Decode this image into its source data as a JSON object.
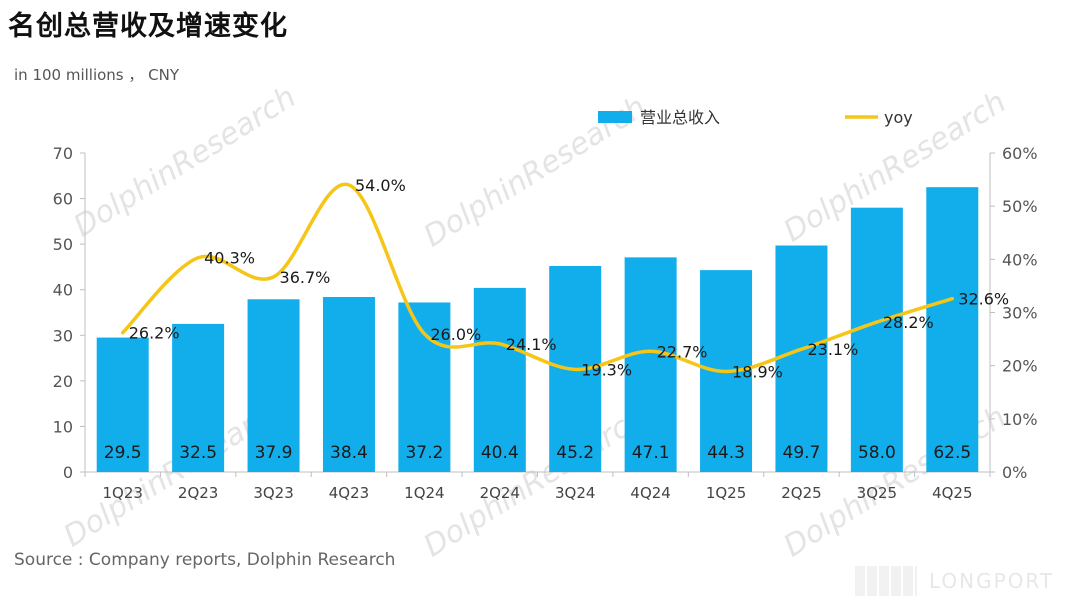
{
  "title": "名创总营收及增速变化",
  "unit_label": "in 100 millions ， CNY",
  "source": "Source : Company reports, Dolphin Research",
  "watermark": "DolphinResearch",
  "logo_text": "LONGPORT",
  "chart_data": {
    "type": "bar",
    "categories": [
      "1Q23",
      "2Q23",
      "3Q23",
      "4Q23",
      "1Q24",
      "2Q24",
      "3Q24",
      "4Q24",
      "1Q25",
      "2Q25",
      "3Q25",
      "4Q25"
    ],
    "series": [
      {
        "name": "营业总收入",
        "type": "bar",
        "axis": "left",
        "color": "#12AEEB",
        "values": [
          29.5,
          32.5,
          37.9,
          38.4,
          37.2,
          40.4,
          45.2,
          47.1,
          44.3,
          49.7,
          58.0,
          62.5
        ],
        "labels": [
          "29.5",
          "32.5",
          "37.9",
          "38.4",
          "37.2",
          "40.4",
          "45.2",
          "47.1",
          "44.3",
          "49.7",
          "58.0",
          "62.5"
        ]
      },
      {
        "name": "yoy",
        "type": "line",
        "axis": "right",
        "color": "#F5C518",
        "values": [
          26.2,
          40.3,
          36.7,
          54.0,
          26.0,
          24.1,
          19.3,
          22.7,
          18.9,
          23.1,
          28.2,
          32.6
        ],
        "labels": [
          "26.2%",
          "40.3%",
          "36.7%",
          "54.0%",
          "26.0%",
          "24.1%",
          "19.3%",
          "22.7%",
          "18.9%",
          "23.1%",
          "28.2%",
          "32.6%"
        ]
      }
    ],
    "y_left": {
      "ylim": [
        0,
        70
      ],
      "ticks": [
        "0",
        "10",
        "20",
        "30",
        "40",
        "50",
        "60",
        "70"
      ]
    },
    "y_right": {
      "ylim": [
        0,
        60
      ],
      "ticks": [
        "0%",
        "10%",
        "20%",
        "30%",
        "40%",
        "50%",
        "60%"
      ]
    },
    "grid": false,
    "legend_position": "top"
  }
}
